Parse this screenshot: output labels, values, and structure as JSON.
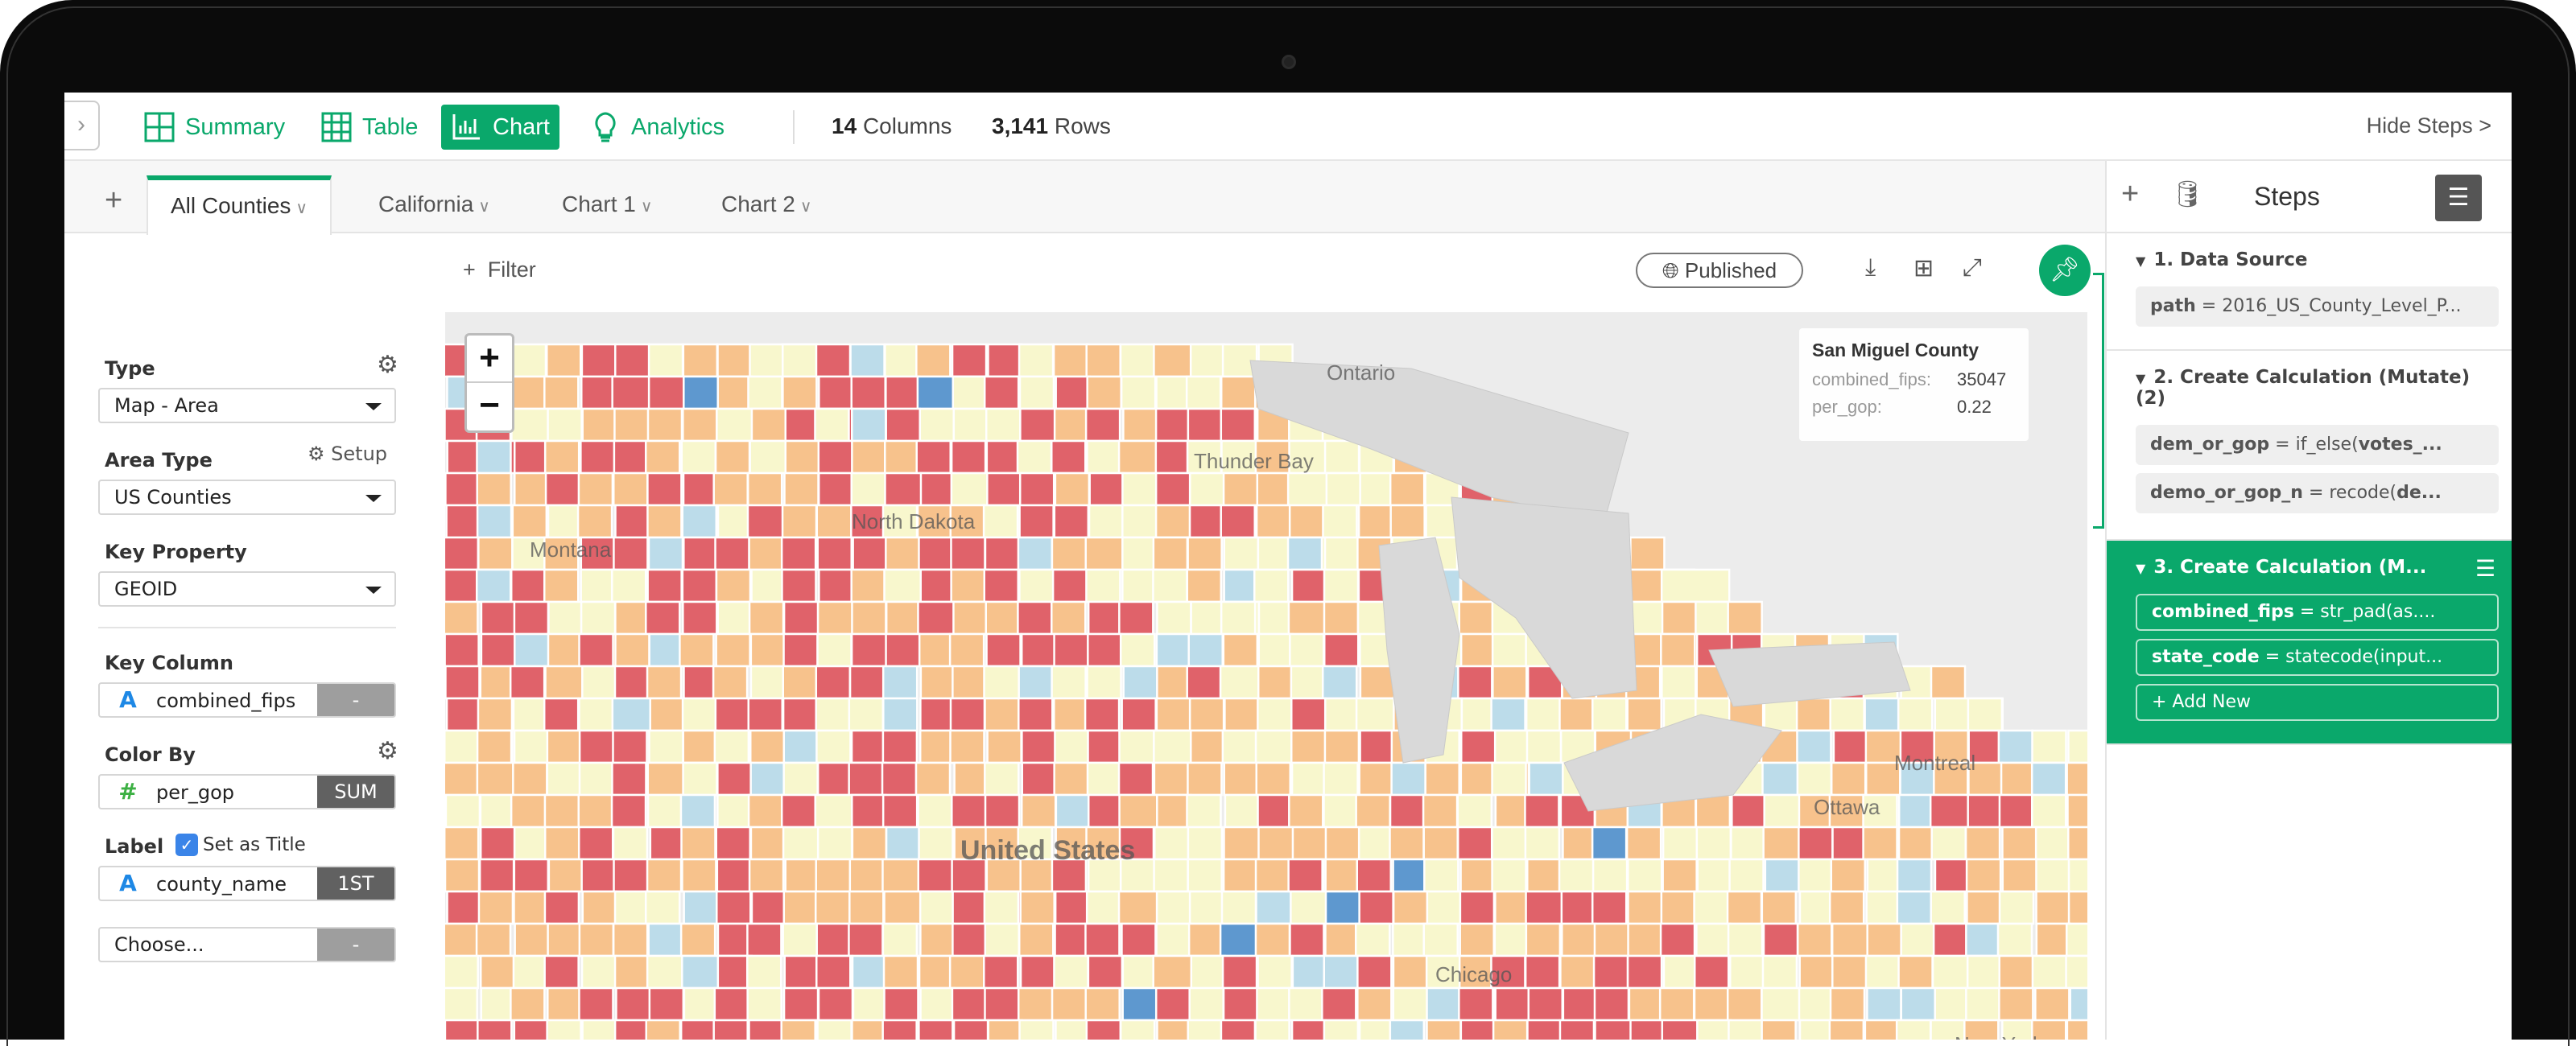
{
  "topbar": {
    "nav": [
      {
        "label": "Summary",
        "icon": "summary-grid-icon"
      },
      {
        "label": "Table",
        "icon": "table-icon"
      },
      {
        "label": "Chart",
        "icon": "bar-chart-icon",
        "active": true
      },
      {
        "label": "Analytics",
        "icon": "lightbulb-icon"
      }
    ],
    "columns_count": "14",
    "columns_label": "Columns",
    "rows_count": "3,141",
    "rows_label": "Rows",
    "hide_steps": "Hide Steps >"
  },
  "tabs": [
    {
      "label": "All Counties",
      "active": true
    },
    {
      "label": "California"
    },
    {
      "label": "Chart 1"
    },
    {
      "label": "Chart 2"
    }
  ],
  "config": {
    "type_label": "Type",
    "type_value": "Map - Area",
    "area_type_label": "Area Type",
    "setup_label": "Setup",
    "area_type_value": "US Counties",
    "key_property_label": "Key Property",
    "key_property_value": "GEOID",
    "key_column_label": "Key Column",
    "key_column": {
      "type_icon": "A",
      "name": "combined_fips",
      "agg": "-"
    },
    "color_by_label": "Color By",
    "color_by": {
      "type_icon": "#",
      "name": "per_gop",
      "agg": "SUM"
    },
    "label_label": "Label",
    "set_as_title": "Set as Title",
    "set_as_title_checked": true,
    "label_col": {
      "type_icon": "A",
      "name": "county_name",
      "agg": "1ST"
    },
    "extra": {
      "name": "Choose...",
      "agg": "-"
    }
  },
  "chart_toolbar": {
    "filter": "Filter",
    "published": "Published"
  },
  "map": {
    "zoom_in": "+",
    "zoom_out": "−",
    "places": [
      "Ontario",
      "Thunder Bay",
      "Montreal",
      "Ottawa",
      "New York",
      "Chicago",
      "United States",
      "Montana",
      "North Dakota"
    ],
    "tooltip": {
      "title": "San Miguel County",
      "rows": [
        {
          "key": "combined_fips:",
          "value": "35047"
        },
        {
          "key": "per_gop:",
          "value": "0.22"
        }
      ]
    },
    "colors": {
      "strong_gop": "#e0626a",
      "gop": "#f7c28c",
      "mixed": "#f8f7cd",
      "dem": "#bcdcea",
      "strong_dem": "#5e98cf",
      "base": "#ececec",
      "water": "#d9d9d9"
    }
  },
  "steps": {
    "title": "Steps",
    "sections": [
      {
        "title": "1. Data Source",
        "items": [
          {
            "key": "path",
            "rest": " = 2016_US_County_Level_P..."
          }
        ]
      },
      {
        "title": "2. Create Calculation (Mutate) (2)",
        "items": [
          {
            "key": "dem_or_gop",
            "rest": " = if_else(",
            "bold2": "votes_..."
          },
          {
            "key": "demo_or_gop_n",
            "rest": " = recode(",
            "bold2": "de..."
          }
        ]
      },
      {
        "title": "3. Create Calculation (M...",
        "active": true,
        "items": [
          {
            "key": "combined_fips",
            "rest": " = str_pad(as...."
          },
          {
            "key": "state_code",
            "rest": " = statecode(input..."
          }
        ],
        "add_new": "+ Add New"
      }
    ]
  },
  "accent": "#0aa86b"
}
